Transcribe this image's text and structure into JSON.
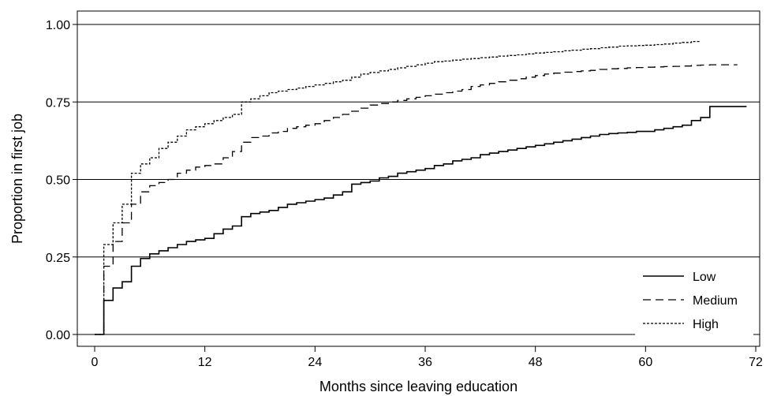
{
  "chart_data": {
    "type": "line",
    "step": true,
    "title": "",
    "xlabel": "Months since leaving education",
    "ylabel": "Proportion in first job",
    "xlim": [
      0,
      72
    ],
    "ylim": [
      0,
      1
    ],
    "xticks": [
      0,
      12,
      24,
      36,
      48,
      60,
      72
    ],
    "yticks": [
      0,
      0.25,
      0.5,
      0.75,
      1.0
    ],
    "xtick_labels": [
      "0",
      "12",
      "24",
      "36",
      "48",
      "60",
      "72"
    ],
    "ytick_labels": [
      "0.00",
      "0.25",
      "0.50",
      "0.75",
      "1.00"
    ],
    "grid": "horizontal",
    "legend_position": "bottom-right",
    "series": [
      {
        "name": "Low",
        "style": "solid",
        "x": [
          0,
          1,
          2,
          3,
          4,
          5,
          6,
          7,
          8,
          9,
          10,
          11,
          12,
          13,
          14,
          15,
          16,
          17,
          18,
          19,
          20,
          21,
          22,
          23,
          24,
          25,
          26,
          27,
          28,
          29,
          30,
          31,
          32,
          33,
          34,
          35,
          36,
          37,
          38,
          39,
          40,
          41,
          42,
          43,
          44,
          45,
          46,
          47,
          48,
          49,
          50,
          51,
          52,
          53,
          54,
          55,
          56,
          57,
          58,
          59,
          60,
          61,
          62,
          63,
          64,
          65,
          66,
          67,
          71
        ],
        "y": [
          0,
          0.11,
          0.15,
          0.17,
          0.22,
          0.245,
          0.26,
          0.27,
          0.28,
          0.29,
          0.3,
          0.305,
          0.31,
          0.325,
          0.34,
          0.35,
          0.38,
          0.39,
          0.395,
          0.4,
          0.41,
          0.42,
          0.425,
          0.43,
          0.435,
          0.44,
          0.45,
          0.46,
          0.485,
          0.49,
          0.495,
          0.505,
          0.51,
          0.52,
          0.525,
          0.53,
          0.535,
          0.545,
          0.55,
          0.56,
          0.565,
          0.57,
          0.58,
          0.585,
          0.59,
          0.595,
          0.6,
          0.605,
          0.61,
          0.615,
          0.62,
          0.625,
          0.63,
          0.635,
          0.64,
          0.645,
          0.648,
          0.65,
          0.652,
          0.655,
          0.655,
          0.66,
          0.665,
          0.67,
          0.675,
          0.69,
          0.7,
          0.735,
          0.735
        ]
      },
      {
        "name": "Medium",
        "style": "dashed",
        "x": [
          0,
          1,
          2,
          3,
          4,
          5,
          6,
          7,
          8,
          9,
          10,
          11,
          12,
          13,
          14,
          15,
          16,
          17,
          18,
          19,
          20,
          21,
          22,
          23,
          24,
          25,
          26,
          27,
          28,
          29,
          30,
          31,
          32,
          33,
          34,
          35,
          36,
          37,
          38,
          39,
          40,
          41,
          42,
          43,
          44,
          45,
          46,
          47,
          48,
          49,
          50,
          51,
          52,
          53,
          54,
          55,
          56,
          57,
          58,
          59,
          60,
          61,
          62,
          63,
          64,
          65,
          66,
          67,
          68,
          69,
          70
        ],
        "y": [
          0,
          0.22,
          0.3,
          0.36,
          0.42,
          0.46,
          0.48,
          0.49,
          0.5,
          0.52,
          0.53,
          0.54,
          0.545,
          0.55,
          0.57,
          0.59,
          0.62,
          0.635,
          0.64,
          0.65,
          0.655,
          0.665,
          0.67,
          0.675,
          0.68,
          0.69,
          0.7,
          0.71,
          0.72,
          0.73,
          0.74,
          0.745,
          0.75,
          0.755,
          0.76,
          0.765,
          0.77,
          0.775,
          0.78,
          0.785,
          0.79,
          0.8,
          0.805,
          0.81,
          0.815,
          0.82,
          0.825,
          0.83,
          0.835,
          0.84,
          0.843,
          0.846,
          0.848,
          0.85,
          0.852,
          0.855,
          0.857,
          0.858,
          0.86,
          0.861,
          0.862,
          0.863,
          0.864,
          0.865,
          0.866,
          0.868,
          0.869,
          0.87,
          0.87,
          0.87,
          0.87
        ]
      },
      {
        "name": "High",
        "style": "dotted",
        "x": [
          0,
          1,
          2,
          3,
          4,
          5,
          6,
          7,
          8,
          9,
          10,
          11,
          12,
          13,
          14,
          15,
          16,
          17,
          18,
          19,
          20,
          21,
          22,
          23,
          24,
          25,
          26,
          27,
          28,
          29,
          30,
          31,
          32,
          33,
          34,
          35,
          36,
          37,
          38,
          39,
          40,
          41,
          42,
          43,
          44,
          45,
          46,
          47,
          48,
          49,
          50,
          51,
          52,
          53,
          54,
          55,
          56,
          57,
          58,
          59,
          60,
          61,
          62,
          63,
          64,
          65,
          66
        ],
        "y": [
          0,
          0.29,
          0.36,
          0.42,
          0.52,
          0.55,
          0.57,
          0.6,
          0.62,
          0.64,
          0.66,
          0.67,
          0.68,
          0.69,
          0.7,
          0.71,
          0.75,
          0.76,
          0.77,
          0.78,
          0.785,
          0.79,
          0.795,
          0.8,
          0.805,
          0.81,
          0.815,
          0.82,
          0.83,
          0.84,
          0.845,
          0.85,
          0.855,
          0.86,
          0.865,
          0.87,
          0.875,
          0.88,
          0.882,
          0.885,
          0.888,
          0.89,
          0.893,
          0.895,
          0.898,
          0.9,
          0.902,
          0.905,
          0.908,
          0.91,
          0.912,
          0.915,
          0.917,
          0.92,
          0.922,
          0.925,
          0.927,
          0.93,
          0.931,
          0.932,
          0.933,
          0.935,
          0.937,
          0.94,
          0.942,
          0.945,
          0.945
        ]
      }
    ],
    "legend": [
      {
        "label": "Low",
        "style": "solid"
      },
      {
        "label": "Medium",
        "style": "dashed"
      },
      {
        "label": "High",
        "style": "dotted"
      }
    ]
  }
}
